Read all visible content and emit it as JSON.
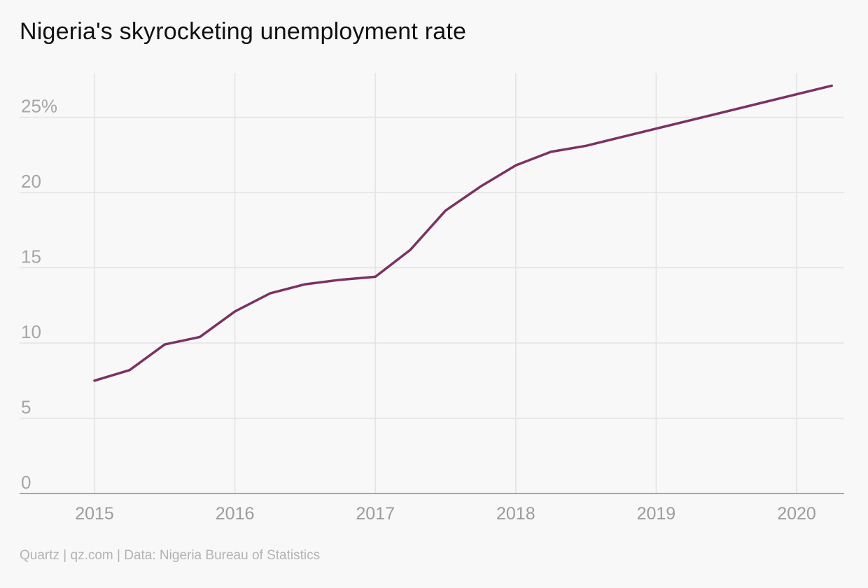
{
  "title": "Nigeria's skyrocketing unemployment rate",
  "source": "Quartz | qz.com | Data: Nigeria Bureau of Statistics",
  "colors": {
    "line": "#7b3262",
    "grid": "#e3e3e3",
    "axis": "#8c8c8c",
    "tick": "#a6a6a6",
    "background": "#f8f8f8"
  },
  "chart_data": {
    "type": "line",
    "title": "Nigeria's skyrocketing unemployment rate",
    "xlabel": "",
    "ylabel": "",
    "xlim": [
      2014.5,
      2020.35
    ],
    "ylim": [
      0,
      28
    ],
    "grid": true,
    "y_ticks": [
      {
        "value": 0,
        "label": "0"
      },
      {
        "value": 5,
        "label": "5"
      },
      {
        "value": 10,
        "label": "10"
      },
      {
        "value": 15,
        "label": "15"
      },
      {
        "value": 20,
        "label": "20"
      },
      {
        "value": 25,
        "label": "25%"
      }
    ],
    "x_ticks": [
      {
        "value": 2015,
        "label": "2015"
      },
      {
        "value": 2016,
        "label": "2016"
      },
      {
        "value": 2017,
        "label": "2017"
      },
      {
        "value": 2018,
        "label": "2018"
      },
      {
        "value": 2019,
        "label": "2019"
      },
      {
        "value": 2020,
        "label": "2020"
      }
    ],
    "series": [
      {
        "color": "#7b3262",
        "points": [
          {
            "x": 2015.0,
            "y": 7.5
          },
          {
            "x": 2015.25,
            "y": 8.2
          },
          {
            "x": 2015.5,
            "y": 9.9
          },
          {
            "x": 2015.75,
            "y": 10.4
          },
          {
            "x": 2016.0,
            "y": 12.1
          },
          {
            "x": 2016.25,
            "y": 13.3
          },
          {
            "x": 2016.5,
            "y": 13.9
          },
          {
            "x": 2016.75,
            "y": 14.2
          },
          {
            "x": 2017.0,
            "y": 14.4
          },
          {
            "x": 2017.25,
            "y": 16.2
          },
          {
            "x": 2017.5,
            "y": 18.8
          },
          {
            "x": 2017.75,
            "y": 20.4
          },
          {
            "x": 2018.0,
            "y": 21.8
          },
          {
            "x": 2018.25,
            "y": 22.7
          },
          {
            "x": 2018.5,
            "y": 23.1
          },
          {
            "x": 2020.25,
            "y": 27.1
          }
        ]
      }
    ]
  }
}
